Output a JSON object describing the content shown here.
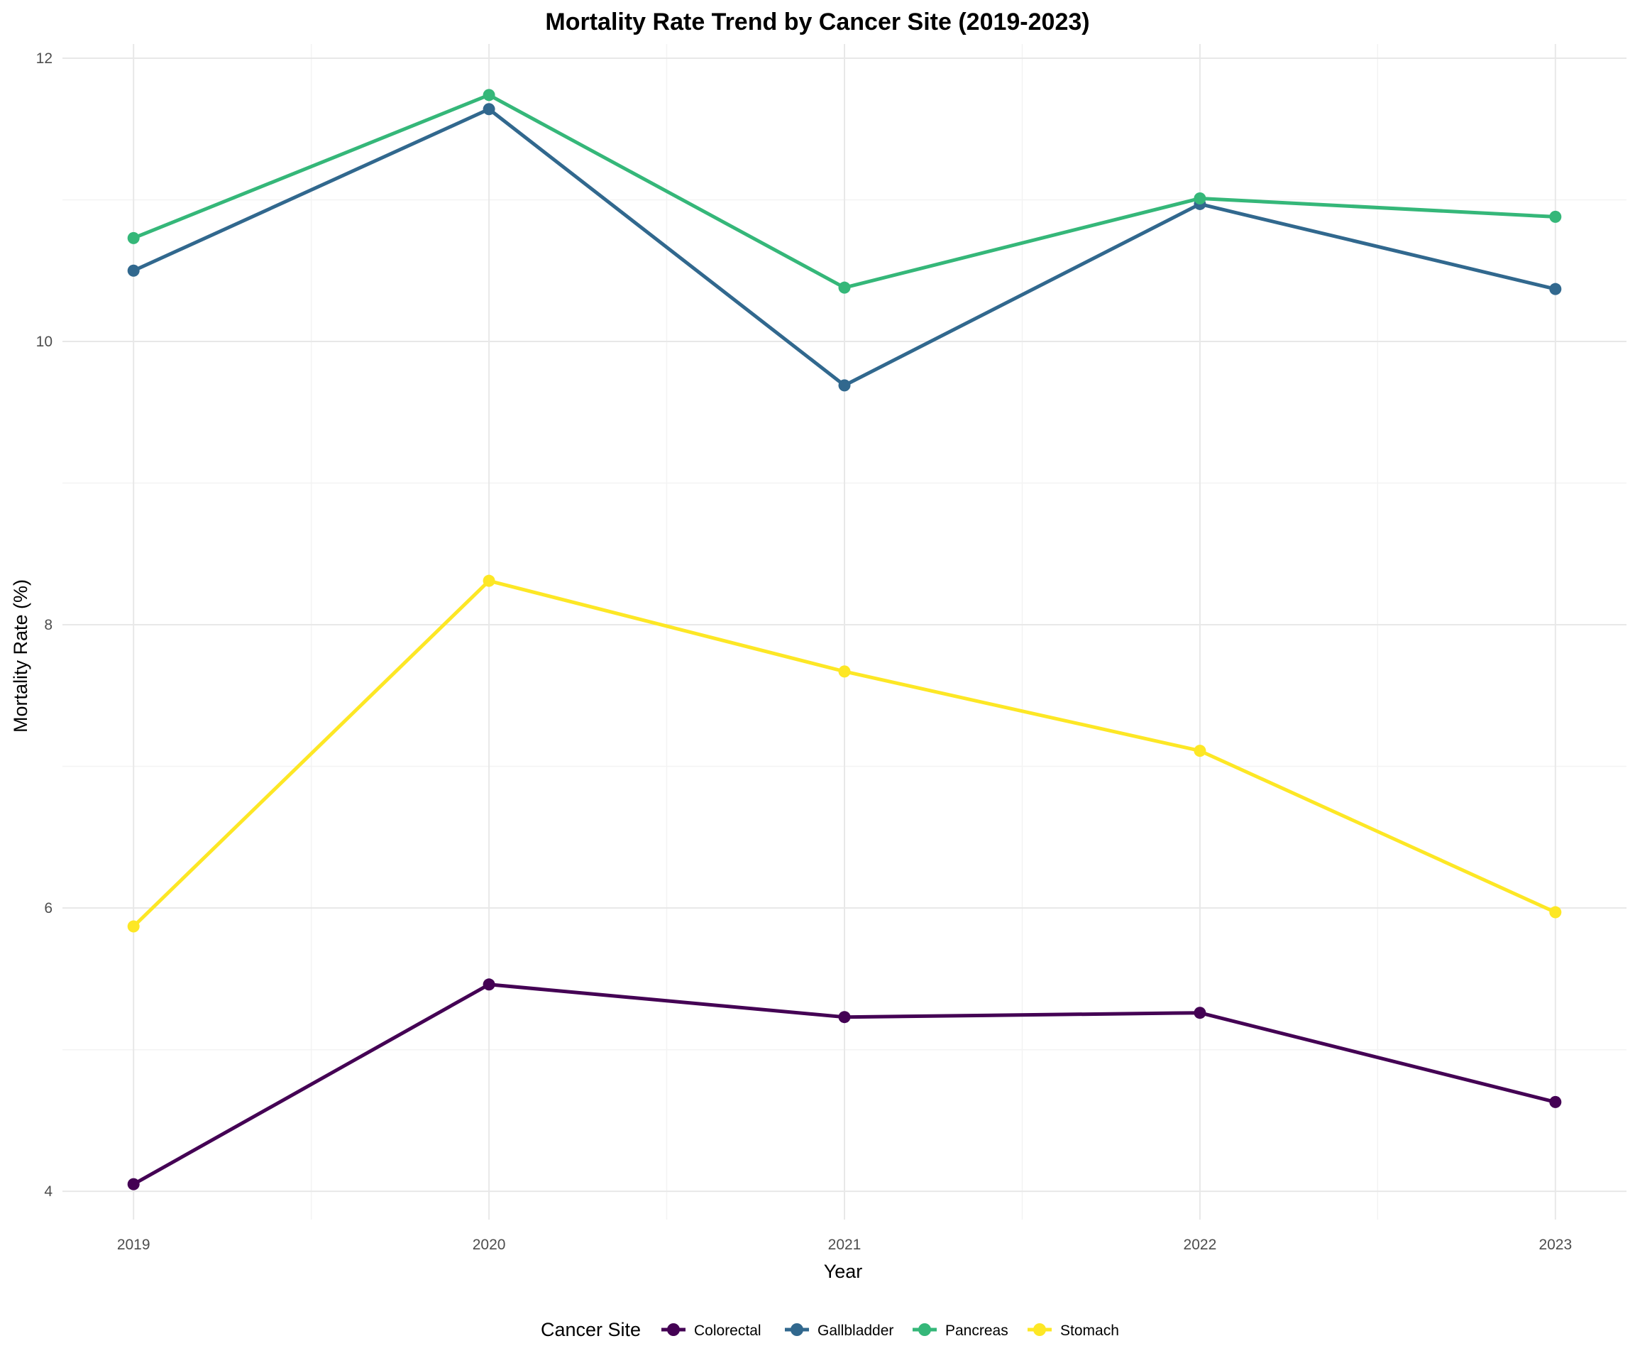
{
  "chart_data": {
    "type": "line",
    "title": "Mortality Rate Trend by Cancer Site (2019-2023)",
    "xlabel": "Year",
    "ylabel": "Mortality Rate (%)",
    "x": [
      2019,
      2020,
      2021,
      2022,
      2023
    ],
    "x_tick_labels": [
      "2019",
      "2020",
      "2021",
      "2022",
      "2023"
    ],
    "ylim": [
      3.8,
      12.1
    ],
    "y_ticks": [
      4,
      6,
      8,
      10,
      12
    ],
    "y_tick_labels": [
      "4",
      "6",
      "8",
      "10",
      "12"
    ],
    "grid": true,
    "legend": {
      "title": "Cancer Site",
      "position": "bottom"
    },
    "series": [
      {
        "name": "Colorectal",
        "color": "#440154",
        "values": [
          4.05,
          5.46,
          5.23,
          5.26,
          4.63
        ]
      },
      {
        "name": "Gallbladder",
        "color": "#31688e",
        "values": [
          10.5,
          11.64,
          9.69,
          10.97,
          10.37
        ]
      },
      {
        "name": "Pancreas",
        "color": "#35b779",
        "values": [
          10.73,
          11.74,
          10.38,
          11.01,
          10.88
        ]
      },
      {
        "name": "Stomach",
        "color": "#fde725",
        "values": [
          5.87,
          8.31,
          7.67,
          7.11,
          5.97
        ]
      }
    ]
  }
}
